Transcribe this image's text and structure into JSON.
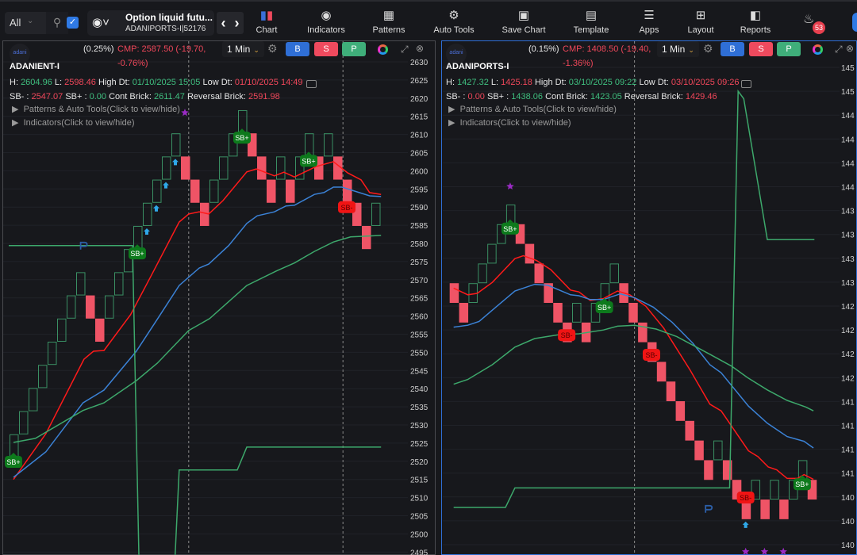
{
  "toolbar": {
    "filter": "All",
    "checkbox_checked": true,
    "instrument_name": "Option liquid futu...",
    "instrument_symbol": "ADANIPORTS-I|52176",
    "items": [
      {
        "label": "Chart",
        "icon": "candlestick-icon"
      },
      {
        "label": "Indicators",
        "icon": "indicators-icon"
      },
      {
        "label": "Patterns",
        "icon": "patterns-icon"
      },
      {
        "label": "Auto Tools",
        "icon": "auto-tools-icon"
      },
      {
        "label": "Save Chart",
        "icon": "save-icon"
      },
      {
        "label": "Template",
        "icon": "template-icon"
      },
      {
        "label": "Apps",
        "icon": "apps-icon"
      },
      {
        "label": "Layout",
        "icon": "layout-icon"
      },
      {
        "label": "Reports",
        "icon": "reports-icon"
      }
    ],
    "notifications": "53"
  },
  "colors": {
    "up": "#3a8f63",
    "down": "#ef5466",
    "ema_fast": "#ff1a1a",
    "ema_mid": "#3b82d6",
    "ema_slow": "#3da86b",
    "accent": "#2f6fd6"
  },
  "panels": [
    {
      "logo": "adani",
      "change_pct": "(0.25%)",
      "cmp_line1": "CMP: 2587.50 (-19.70,",
      "cmp_line2": "-0.76%)",
      "interval": "1 Min",
      "buy": "B",
      "sell": "S",
      "p": "P",
      "symbol": "ADANIENT-I",
      "h_label": "H:",
      "h": "2604.96",
      "l_label": "L:",
      "l": "2598.46",
      "hd_label": "High Dt:",
      "high_dt": "01/10/2025 15:05",
      "ld_label": "Low Dt:",
      "low_dt": "01/10/2025 14:49",
      "sbm_label": "SB- :",
      "sbm": "2547.07",
      "sbp_label": "SB+ :",
      "sbp": "0.00",
      "cont_label": "Cont Brick:",
      "cont": "2611.47",
      "rev_label": "Reversal Brick:",
      "rev": "2591.98",
      "patterns": "Patterns & Auto Tools(Click to view/hide)",
      "indicators": "Indicators(Click to view/hide)"
    },
    {
      "logo": "adani",
      "change_pct": "(0.15%)",
      "cmp_line1": "CMP: 1408.50 (-19.40,",
      "cmp_line2": "-1.36%)",
      "interval": "1 Min",
      "buy": "B",
      "sell": "S",
      "p": "P",
      "symbol": "ADANIPORTS-I",
      "h_label": "H:",
      "h": "1427.32",
      "l_label": "L:",
      "l": "1425.18",
      "hd_label": "High Dt:",
      "high_dt": "03/10/2025 09:22",
      "ld_label": "Low Dt:",
      "low_dt": "03/10/2025 09:26",
      "sbm_label": "SB- :",
      "sbm": "0.00",
      "sbp_label": "SB+ :",
      "sbp": "1438.06",
      "cont_label": "Cont Brick:",
      "cont": "1423.05",
      "rev_label": "Reversal Brick:",
      "rev": "1429.46",
      "patterns": "Patterns & Auto Tools(Click to view/hide)",
      "indicators": "Indicators(Click to view/hide)"
    }
  ],
  "chart_data": [
    {
      "type": "renko",
      "symbol": "ADANIENT-I",
      "start_price": 2521.05,
      "brick_size": 6.376,
      "bricks": "UUUUUUUUDDUUUUUUUUDDDUUUUDDDUDUUDUDDDDU",
      "yticks": [
        2630,
        2625,
        2620,
        2615,
        2610,
        2605,
        2600,
        2595,
        2590,
        2585,
        2580,
        2575,
        2570,
        2565,
        2560,
        2555,
        2550,
        2545,
        2540,
        2535,
        2530,
        2525,
        2520,
        2515,
        2510,
        2505,
        2500,
        2495
      ],
      "series": [
        {
          "name": "ema_fast",
          "color": "#ff1a1a",
          "points": [
            [
              0,
              2515
            ],
            [
              3.4,
              2527.6
            ],
            [
              7.4,
              2548.1
            ],
            [
              8.4,
              2550.3
            ],
            [
              9.5,
              2550.5
            ],
            [
              12.3,
              2560.4
            ],
            [
              14.5,
              2571.3
            ],
            [
              17.4,
              2585.9
            ],
            [
              18.4,
              2588.1
            ],
            [
              19.5,
              2588.7
            ],
            [
              20.5,
              2588.1
            ],
            [
              22,
              2591.8
            ],
            [
              24.5,
              2599.7
            ],
            [
              25.5,
              2600.5
            ],
            [
              27.4,
              2598.6
            ],
            [
              28.4,
              2599.6
            ],
            [
              29.5,
              2598.3
            ],
            [
              31.8,
              2601.2
            ],
            [
              33.6,
              2602.5
            ],
            [
              35.1,
              2599.4
            ],
            [
              36.5,
              2597.5
            ],
            [
              37.4,
              2594
            ],
            [
              38.6,
              2593.5
            ]
          ]
        },
        {
          "name": "ema_mid",
          "color": "#3b82d6",
          "points": [
            [
              0,
              2515.6
            ],
            [
              3.4,
              2522.6
            ],
            [
              7.3,
              2536.1
            ],
            [
              9.5,
              2539.6
            ],
            [
              12.9,
              2550.3
            ],
            [
              15.1,
              2559.1
            ],
            [
              17.4,
              2568.4
            ],
            [
              19.5,
              2573.2
            ],
            [
              20.5,
              2574.3
            ],
            [
              22.6,
              2579.4
            ],
            [
              24.5,
              2585.5
            ],
            [
              25.6,
              2587.6
            ],
            [
              27.4,
              2588.7
            ],
            [
              28.6,
              2590.3
            ],
            [
              29.5,
              2590.5
            ],
            [
              31.6,
              2593.5
            ],
            [
              32.6,
              2594
            ],
            [
              33.6,
              2595.5
            ],
            [
              34.5,
              2595.5
            ],
            [
              37.4,
              2593.1
            ],
            [
              38.6,
              2592.9
            ]
          ]
        },
        {
          "name": "ema_slow",
          "color": "#3da86b",
          "points": [
            [
              0,
              2525.2
            ],
            [
              2.3,
              2526.3
            ],
            [
              7.3,
              2534
            ],
            [
              9.5,
              2536.1
            ],
            [
              12.9,
              2542.2
            ],
            [
              15.1,
              2547
            ],
            [
              18.4,
              2556
            ],
            [
              20.6,
              2559.3
            ],
            [
              24.5,
              2568.4
            ],
            [
              27.6,
              2572.4
            ],
            [
              29.5,
              2574.6
            ],
            [
              31.6,
              2577.8
            ],
            [
              33.6,
              2580.4
            ],
            [
              35.4,
              2581.8
            ],
            [
              37.2,
              2582
            ],
            [
              38.6,
              2582.2
            ]
          ]
        },
        {
          "name": "stop_line",
          "color": "#3da86b",
          "points": [
            [
              -0.5,
              2579.4
            ],
            [
              12.5,
              2579.4
            ],
            [
              13.2,
              2490
            ],
            null,
            [
              16.9,
              2490
            ],
            [
              17.4,
              2517.6
            ],
            [
              23.5,
              2517.6
            ],
            [
              24.5,
              2523.9
            ],
            [
              38.6,
              2523.9
            ]
          ]
        }
      ],
      "signals": [
        {
          "col": 0,
          "label": "SB+",
          "kind": "buy",
          "pos": "below"
        },
        {
          "col": 13,
          "label": "SB+",
          "kind": "buy",
          "pos": "below"
        },
        {
          "col": 24,
          "label": "SB+",
          "kind": "buy",
          "pos": "below"
        },
        {
          "col": 31,
          "label": "SB+",
          "kind": "buy",
          "pos": "below"
        },
        {
          "col": 35,
          "label": "SB-",
          "kind": "sell",
          "pos": "below"
        }
      ],
      "arrows": [
        13,
        14,
        15,
        16,
        17
      ],
      "stars": [
        {
          "col": 18,
          "price": 2616
        }
      ],
      "p_marks": [
        {
          "col": 7.3,
          "price": 2579.4
        }
      ],
      "dividers": [
        18.4,
        34.6
      ]
    },
    {
      "type": "renko",
      "symbol": "ADANIPORTS-I",
      "start_price": 1430.25,
      "brick_size": 2.067,
      "bricks": "DDUUUUUDDDDDDUDUUUDDDDDDDDDDUDDDUDUDUUD",
      "yticks": [
        "145",
        "145",
        "144",
        "144",
        "144",
        "144",
        "143",
        "143",
        "143",
        "143",
        "142",
        "142",
        "142",
        "142",
        "141",
        "141",
        "141",
        "141",
        "140",
        "140",
        "140"
      ],
      "series": [
        {
          "name": "ema_fast",
          "color": "#ff1a1a",
          "points": [
            [
              0,
              1431.8
            ],
            [
              1.5,
              1431.1
            ],
            [
              2.5,
              1431.25
            ],
            [
              4.1,
              1432.4
            ],
            [
              6.5,
              1434.9
            ],
            [
              7.4,
              1435.2
            ],
            [
              8.8,
              1434.7
            ],
            [
              10.3,
              1433.75
            ],
            [
              12.4,
              1431.6
            ],
            [
              13.3,
              1431.4
            ],
            [
              14.5,
              1430.5
            ],
            [
              15.9,
              1430.7
            ],
            [
              17.4,
              1431.5
            ],
            [
              18.7,
              1431.1
            ],
            [
              20.4,
              1429.9
            ],
            [
              22.3,
              1427.6
            ],
            [
              25.1,
              1423.2
            ],
            [
              27.2,
              1419.6
            ],
            [
              28.4,
              1418.9
            ],
            [
              31.3,
              1414.7
            ],
            [
              32.3,
              1414.1
            ],
            [
              33.4,
              1413
            ],
            [
              34.3,
              1412.7
            ],
            [
              35.4,
              1411.8
            ],
            [
              36.5,
              1411.8
            ],
            [
              37.2,
              1412.2
            ],
            [
              38.2,
              1411.7
            ]
          ]
        },
        {
          "name": "ema_mid",
          "color": "#3b82d6",
          "points": [
            [
              0,
              1427.7
            ],
            [
              1.5,
              1427.9
            ],
            [
              2.7,
              1428.3
            ],
            [
              4.6,
              1429.9
            ],
            [
              6.5,
              1431.5
            ],
            [
              8.6,
              1432.2
            ],
            [
              10,
              1432.1
            ],
            [
              12.4,
              1431.1
            ],
            [
              13.3,
              1431
            ],
            [
              14.5,
              1430.6
            ],
            [
              15.9,
              1430.6
            ],
            [
              17.7,
              1431.2
            ],
            [
              19.2,
              1430.8
            ],
            [
              21.2,
              1429.8
            ],
            [
              23.2,
              1428.2
            ],
            [
              25.4,
              1426
            ],
            [
              27.2,
              1423.75
            ],
            [
              28.4,
              1422.9
            ],
            [
              31.3,
              1419.4
            ],
            [
              33.3,
              1417.6
            ],
            [
              35.4,
              1416.2
            ],
            [
              37.2,
              1415.7
            ],
            [
              38.2,
              1415
            ]
          ]
        },
        {
          "name": "ema_slow",
          "color": "#3da86b",
          "points": [
            [
              0,
              1421.7
            ],
            [
              1.5,
              1422.2
            ],
            [
              4.1,
              1423.75
            ],
            [
              6.5,
              1425.6
            ],
            [
              8.6,
              1426.5
            ],
            [
              11.1,
              1426.9
            ],
            [
              13.3,
              1427
            ],
            [
              15.9,
              1427.4
            ],
            [
              17.4,
              1427.8
            ],
            [
              19.2,
              1427.9
            ],
            [
              21.5,
              1427.5
            ],
            [
              23.7,
              1426.7
            ],
            [
              27.1,
              1424.9
            ],
            [
              29.5,
              1423.6
            ],
            [
              31.2,
              1422.4
            ],
            [
              33.3,
              1421.1
            ],
            [
              35.4,
              1420
            ],
            [
              37.4,
              1419.3
            ],
            [
              38.2,
              1418.9
            ]
          ]
        },
        {
          "name": "stop_line",
          "color": "#3da86b",
          "points": [
            [
              0,
              1408.75
            ],
            [
              5.5,
              1408.75
            ],
            [
              6.5,
              1410.8
            ],
            [
              29.3,
              1410.8
            ],
            [
              30.2,
              1452.5
            ],
            [
              30.8,
              1451.7
            ],
            [
              33.3,
              1436.9
            ],
            [
              38.3,
              1436.9
            ]
          ]
        }
      ],
      "signals": [
        {
          "col": 6,
          "label": "SB+",
          "kind": "buy",
          "pos": "below"
        },
        {
          "col": 12,
          "label": "SB-",
          "kind": "sell",
          "pos": "at"
        },
        {
          "col": 16,
          "label": "SB+",
          "kind": "buy",
          "pos": "below"
        },
        {
          "col": 21,
          "label": "SB-",
          "kind": "sell",
          "pos": "at"
        },
        {
          "col": 31,
          "label": "SB-",
          "kind": "sell",
          "pos": "above"
        },
        {
          "col": 37,
          "label": "SB+",
          "kind": "buy",
          "pos": "below"
        }
      ],
      "arrows": [
        31
      ],
      "stars": [
        {
          "col": 6,
          "price": 1442.5
        },
        {
          "col": 31,
          "price": 1404.1
        },
        {
          "col": 33,
          "price": 1404.1
        },
        {
          "col": 35,
          "price": 1404.1
        }
      ],
      "p_marks": [
        {
          "col": 27,
          "price": 1408.6
        }
      ],
      "dividers": [
        19.2
      ]
    }
  ]
}
